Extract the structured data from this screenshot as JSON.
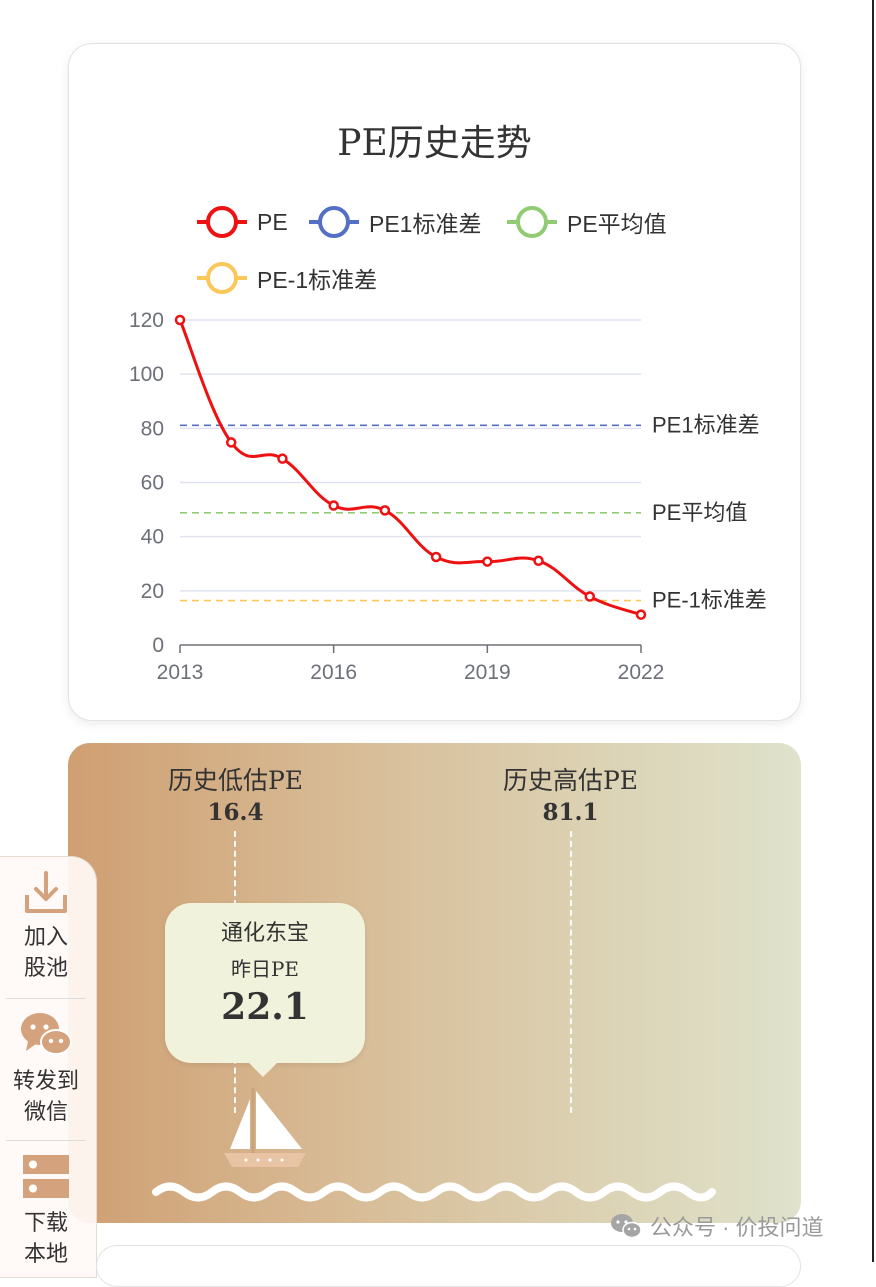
{
  "chart_data": {
    "type": "line",
    "title": "PE历史走势",
    "x": [
      2013,
      2014,
      2015,
      2016,
      2017,
      2018,
      2019,
      2020,
      2021,
      2022
    ],
    "x_ticks": [
      "2013",
      "2016",
      "2019",
      "2022"
    ],
    "y_ticks": [
      "0",
      "20",
      "40",
      "60",
      "80",
      "100",
      "120"
    ],
    "ylim": [
      0,
      120
    ],
    "series": [
      {
        "name": "PE",
        "color": "#ee1111",
        "values": [
          120,
          74.8,
          68.8,
          51.5,
          49.7,
          32.5,
          30.8,
          31.1,
          17.9,
          11.2
        ]
      }
    ],
    "reference_lines": [
      {
        "name": "PE1标准差",
        "value": 81.1,
        "color": "#5470c6"
      },
      {
        "name": "PE平均值",
        "value": 48.8,
        "color": "#91cc75"
      },
      {
        "name": "PE-1标准差",
        "value": 16.4,
        "color": "#fac858"
      }
    ],
    "legend": [
      "PE",
      "PE1标准差",
      "PE平均值",
      "PE-1标准差"
    ],
    "legend_position": "top",
    "grid": true
  },
  "valuation": {
    "low_label": "历史低估PE",
    "low_value": "16.4",
    "high_label": "历史高估PE",
    "high_value": "81.1",
    "bubble_name": "通化东宝",
    "bubble_sub": "昨日PE",
    "bubble_value": "22.1"
  },
  "sidebar": {
    "add_line1": "加入",
    "add_line2": "股池",
    "share_line1": "转发到",
    "share_line2": "微信",
    "download_line1": "下载",
    "download_line2": "本地"
  },
  "watermark": {
    "text": "公众号 · 价投问道"
  },
  "colors": {
    "pe_line": "#ee1111",
    "std_plus": "#5470c6",
    "mean": "#91cc75",
    "std_minus": "#fac858",
    "icon_accent": "#d4a27c"
  }
}
